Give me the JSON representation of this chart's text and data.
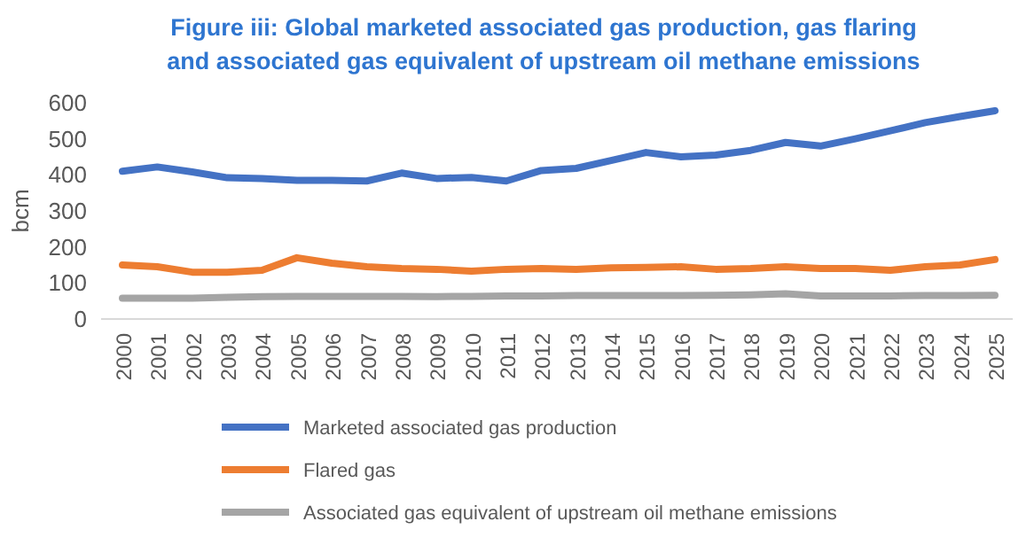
{
  "chart_data": {
    "type": "line",
    "title": "Figure iii: Global marketed associated gas production, gas flaring\nand associated gas equivalent of upstream oil methane emissions",
    "ylabel": "bcm",
    "categories": [
      "2000",
      "2001",
      "2002",
      "2003",
      "2004",
      "2005",
      "2006",
      "2007",
      "2008",
      "2009",
      "2010",
      "2011",
      "2012",
      "2013",
      "2014",
      "2015",
      "2016",
      "2017",
      "2018",
      "2019",
      "2020",
      "2021",
      "2022",
      "2023",
      "2024",
      "2025"
    ],
    "series": [
      {
        "name": "Marketed associated gas production",
        "color": "#4472c4",
        "values": [
          410,
          422,
          408,
          392,
          390,
          385,
          385,
          383,
          405,
          390,
          393,
          383,
          412,
          418,
          440,
          462,
          450,
          455,
          468,
          490,
          480,
          500,
          522,
          545,
          562,
          578
        ]
      },
      {
        "name": "Flared gas",
        "color": "#ed7d31",
        "values": [
          150,
          145,
          130,
          130,
          135,
          170,
          155,
          145,
          140,
          138,
          133,
          138,
          140,
          138,
          142,
          143,
          145,
          138,
          140,
          145,
          140,
          140,
          135,
          145,
          150,
          165
        ]
      },
      {
        "name": "Associated gas equivalent of upstream oil methane emissions",
        "color": "#a5a5a5",
        "values": [
          58,
          58,
          58,
          60,
          62,
          63,
          63,
          63,
          63,
          62,
          63,
          64,
          64,
          65,
          65,
          65,
          65,
          66,
          67,
          70,
          64,
          64,
          64,
          65,
          65,
          66
        ]
      }
    ],
    "ylim": [
      0,
      600
    ],
    "yticks": [
      0,
      100,
      200,
      300,
      400,
      500,
      600
    ],
    "grid": false,
    "legend": "bottom",
    "marker": "none",
    "line_style": "solid"
  }
}
